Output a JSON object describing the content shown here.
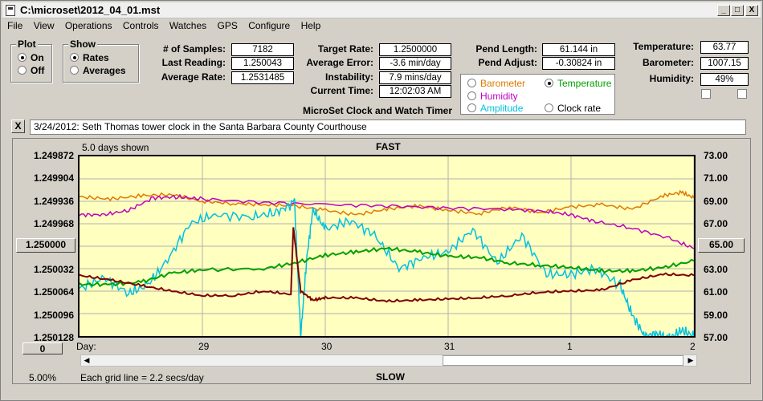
{
  "window": {
    "title": "C:\\microset\\2012_04_01.mst",
    "minimize": "_",
    "maximize": "□",
    "close": "X"
  },
  "menu": [
    "File",
    "View",
    "Operations",
    "Controls",
    "Watches",
    "GPS",
    "Configure",
    "Help"
  ],
  "plot_group": {
    "title": "Plot",
    "options": [
      "On",
      "Off"
    ],
    "selected": "On"
  },
  "show_group": {
    "title": "Show",
    "options": [
      "Rates",
      "Averages"
    ],
    "selected": "Rates"
  },
  "stats": {
    "samples_label": "# of Samples:",
    "samples": "7182",
    "last_label": "Last Reading:",
    "last": "1.250043",
    "avg_label": "Average Rate:",
    "avg": "1.2531485",
    "target_label": "Target Rate:",
    "target": "1.2500000",
    "avgerr_label": "Average Error:",
    "avgerr": "-3.6 min/day",
    "instab_label": "Instability:",
    "instab": "7.9 mins/day",
    "time_label": "Current Time:",
    "time": "12:02:03 AM",
    "pendlen_label": "Pend Length:",
    "pendlen": "61.144 in",
    "pendadj_label": "Pend Adjust:",
    "pendadj": "-0.30824 in",
    "temp_label": "Temperature:",
    "temp": "63.77",
    "baro_label": "Barometer:",
    "baro": "1007.15",
    "hum_label": "Humidity:",
    "hum": "49%"
  },
  "app_caption": "MicroSet Clock and Watch Timer",
  "sensor_options": [
    {
      "label": "Barometer",
      "color": "#e07800",
      "selected": false
    },
    {
      "label": "Temperature",
      "color": "#00a000",
      "selected": true
    },
    {
      "label": "Humidity",
      "color": "#c000c0",
      "selected": false
    },
    {
      "label": "Amplitude",
      "color": "#00c0e0",
      "selected": false
    },
    {
      "label": "Clock rate",
      "color": "#000000",
      "selected": false
    }
  ],
  "note": {
    "close": "X",
    "text": "3/24/2012: Seth Thomas tower clock in the Santa Barbara County Courthouse"
  },
  "chart_labels": {
    "days_shown": "5.0 days shown",
    "top": "FAST",
    "bottom": "SLOW",
    "day_label": "Day:",
    "grid_note": "Each grid line = 2.2 secs/day",
    "scale_pct": "5.00%",
    "zero_btn": "0",
    "center_left": "1.250000",
    "center_right": "65.00"
  },
  "chart_data": {
    "type": "line",
    "x_ticks": [
      "29",
      "30",
      "31",
      "1",
      "2"
    ],
    "y_left_ticks": [
      "1.249872",
      "1.249904",
      "1.249936",
      "1.249968",
      "1.250000",
      "1.250032",
      "1.250064",
      "1.250096",
      "1.250128"
    ],
    "y_right_ticks": [
      "73.00",
      "71.00",
      "69.00",
      "67.00",
      "65.00",
      "63.00",
      "61.00",
      "59.00",
      "57.00"
    ],
    "ylim_right": [
      57,
      73
    ],
    "x_range": [
      0,
      5
    ],
    "grid": true,
    "series": [
      {
        "name": "Barometer",
        "color": "#e07800",
        "x": [
          0,
          0.25,
          0.5,
          0.75,
          1.0,
          1.25,
          1.5,
          1.75,
          2.0,
          2.25,
          2.5,
          2.75,
          3.0,
          3.25,
          3.5,
          3.75,
          4.0,
          4.25,
          4.5,
          4.75,
          4.9,
          5.0
        ],
        "y": [
          69.4,
          69.2,
          69.5,
          69.6,
          69.0,
          68.8,
          68.7,
          68.6,
          68.2,
          67.8,
          68.3,
          68.6,
          68.2,
          67.9,
          68.5,
          68.0,
          68.5,
          68.7,
          68.3,
          69.5,
          69.8,
          69.3
        ]
      },
      {
        "name": "Humidity",
        "color": "#c000c0",
        "x": [
          0,
          0.2,
          0.4,
          0.6,
          0.8,
          1.0,
          1.5,
          2.0,
          2.5,
          3.0,
          3.5,
          3.8,
          4.0,
          4.2,
          4.5,
          4.8,
          5.0
        ],
        "y": [
          67.8,
          67.8,
          68.2,
          69.3,
          69.4,
          69.2,
          68.9,
          68.7,
          68.6,
          68.4,
          68.3,
          68.1,
          67.8,
          67.2,
          66.6,
          65.7,
          64.8
        ]
      },
      {
        "name": "Amplitude",
        "color": "#00c0e0",
        "x": [
          0,
          0.2,
          0.4,
          0.55,
          0.7,
          0.9,
          1.1,
          1.4,
          1.6,
          1.75,
          1.8,
          1.85,
          1.9,
          2.0,
          2.2,
          2.4,
          2.6,
          2.8,
          3.0,
          3.2,
          3.4,
          3.6,
          3.8,
          4.0,
          4.2,
          4.4,
          4.5,
          4.6,
          4.7,
          4.8,
          4.9,
          5.0
        ],
        "y": [
          61.2,
          62.2,
          60.8,
          61.5,
          63.5,
          67.0,
          67.8,
          67.6,
          68.0,
          68.9,
          57.0,
          64.0,
          68.3,
          66.5,
          67.3,
          66.0,
          63.0,
          64.0,
          64.5,
          66.5,
          63.5,
          66.0,
          62.5,
          62.5,
          63.0,
          61.5,
          58.8,
          57.0,
          57.2,
          56.8,
          57.5,
          57.0
        ]
      },
      {
        "name": "Temperature",
        "color": "#00a000",
        "x": [
          0,
          0.25,
          0.5,
          0.75,
          1.0,
          1.5,
          1.75,
          2.0,
          2.25,
          2.5,
          2.75,
          3.0,
          3.25,
          3.5,
          3.75,
          4.0,
          4.25,
          4.5,
          4.75,
          5.0
        ],
        "y": [
          61.6,
          61.6,
          61.8,
          62.6,
          62.9,
          63.0,
          63.5,
          64.2,
          64.5,
          64.8,
          64.5,
          64.1,
          64.0,
          63.5,
          63.3,
          63.1,
          62.8,
          62.8,
          63.1,
          63.7
        ]
      },
      {
        "name": "Clock rate",
        "color": "#800000",
        "x": [
          0,
          0.25,
          0.5,
          0.75,
          1.0,
          1.25,
          1.5,
          1.72,
          1.74,
          1.8,
          1.9,
          2.0,
          2.25,
          2.5,
          2.75,
          3.0,
          3.25,
          3.5,
          3.75,
          4.0,
          4.25,
          4.5,
          4.75,
          5.0
        ],
        "y": [
          62.4,
          62.0,
          61.5,
          61.0,
          60.6,
          60.6,
          61.0,
          60.7,
          66.7,
          61.0,
          60.2,
          60.4,
          60.4,
          60.1,
          60.2,
          60.3,
          60.4,
          60.6,
          60.9,
          61.0,
          61.1,
          62.0,
          62.5,
          62.4
        ]
      }
    ]
  }
}
